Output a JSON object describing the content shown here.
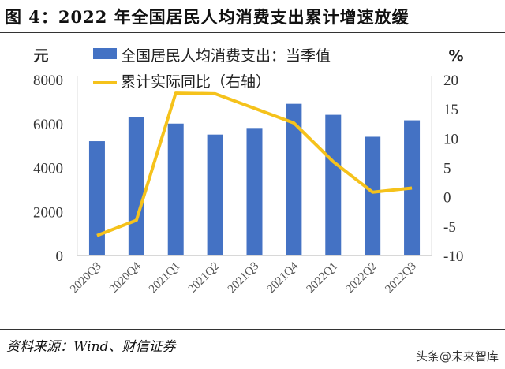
{
  "title": "图 4：2022 年全国居民人均消费支出累计增速放缓",
  "source": "资料来源：Wind、财信证券",
  "watermark": "头条@未来智库",
  "colors": {
    "bar": "#4472C4",
    "line": "#F5C21B"
  },
  "chart_data": {
    "type": "bar+line",
    "categories": [
      "2020Q3",
      "2020Q4",
      "2021Q1",
      "2021Q2",
      "2021Q3",
      "2021Q4",
      "2022Q1",
      "2022Q2",
      "2022Q3"
    ],
    "series": [
      {
        "name": "全国居民人均消费支出：当季值",
        "type": "bar",
        "axis": "left",
        "values": [
          5200,
          6300,
          6000,
          5500,
          5800,
          6900,
          6400,
          5400,
          6150
        ]
      },
      {
        "name": "累计实际同比（右轴）",
        "type": "line",
        "axis": "right",
        "values": [
          -6.6,
          -4.0,
          17.7,
          17.6,
          15.1,
          12.6,
          6.0,
          0.8,
          1.5
        ]
      }
    ],
    "left_axis": {
      "label": "元",
      "range": [
        0,
        8000
      ],
      "ticks": [
        0,
        2000,
        4000,
        6000,
        8000
      ]
    },
    "right_axis": {
      "label": "%",
      "range": [
        -10,
        20
      ],
      "ticks": [
        -10,
        -5,
        0,
        5,
        10,
        15,
        20
      ]
    },
    "legend": "top-left",
    "grid": false
  }
}
